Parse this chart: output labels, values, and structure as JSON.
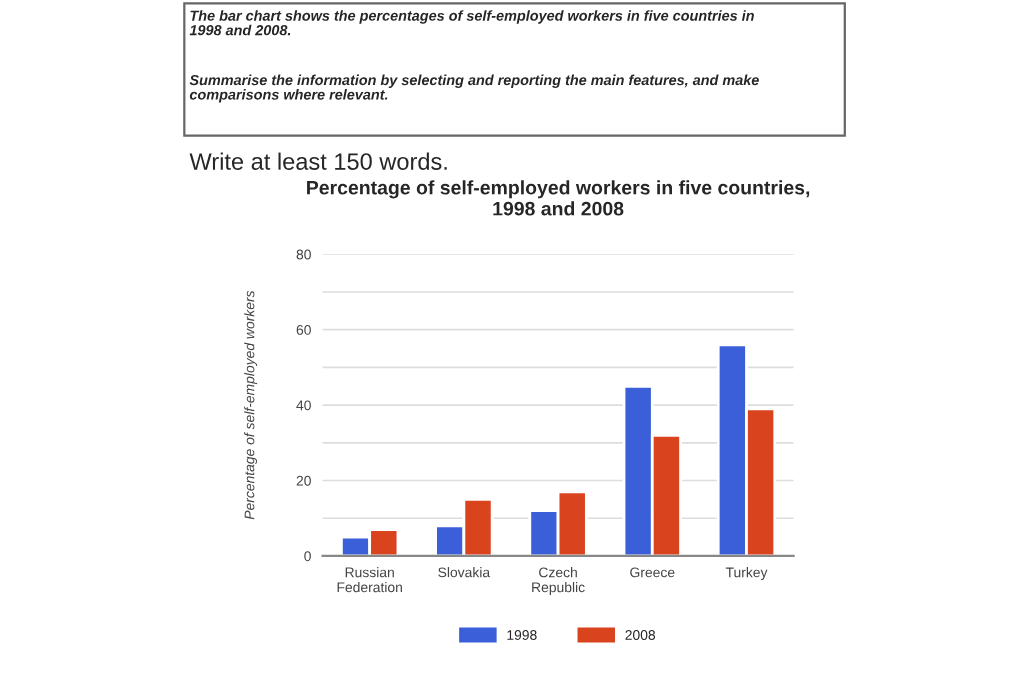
{
  "chart_data": {
    "type": "bar",
    "title": "Percentage of self-employed workers in five countries,\n1998 and 2008",
    "ylabel": "Percentage of self-employed workers",
    "categories": [
      "Russian\nFederation",
      "Slovakia",
      "Czech\nRepublic",
      "Greece",
      "Turkey"
    ],
    "series": [
      {
        "name": "1998",
        "color": "#3b5fd9",
        "values": [
          5,
          8,
          12,
          45,
          56
        ]
      },
      {
        "name": "2008",
        "color": "#d9441f",
        "values": [
          7,
          15,
          17,
          32,
          39
        ]
      }
    ],
    "ylim": [
      0,
      80
    ],
    "yticks": [
      0,
      {
        "value": 10,
        "label": null
      },
      20,
      {
        "value": 30,
        "label": null
      },
      40,
      {
        "value": 50,
        "label": null
      },
      60,
      {
        "value": 70,
        "label": null
      },
      80
    ],
    "grid": "y",
    "legend": "bottom",
    "annotations": [
      "The bar chart shows the percentages of self-employed workers in five countries in\n1998 and 2008.",
      "Summarise the information by selecting and reporting the main features, and make\ncomparisons where relevant.",
      "Write at least 150 words."
    ]
  }
}
